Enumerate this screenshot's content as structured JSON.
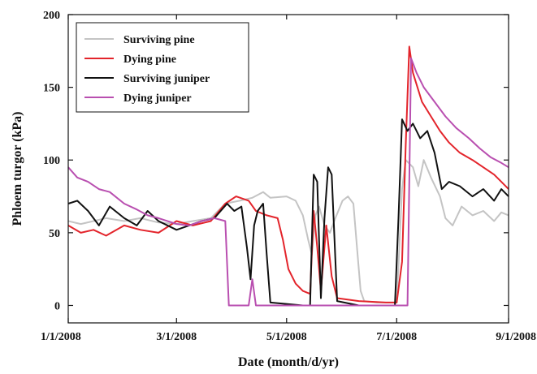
{
  "chart_data": {
    "type": "line",
    "xlabel": "Date (month/d/yr)",
    "ylabel": "Phloem turgor (kPa)",
    "xlim": [
      "2008-01-01",
      "2008-09-01"
    ],
    "ylim": [
      -12,
      200
    ],
    "x_ticks": [
      {
        "date": "2008-01-01",
        "label": "1/1/2008"
      },
      {
        "date": "2008-03-01",
        "label": "3/1/2008"
      },
      {
        "date": "2008-05-01",
        "label": "5/1/2008"
      },
      {
        "date": "2008-07-01",
        "label": "7/1/2008"
      },
      {
        "date": "2008-09-01",
        "label": "9/1/2008"
      }
    ],
    "y_ticks": [
      0,
      50,
      100,
      150,
      200
    ],
    "grid": false,
    "legend_position": "top-left",
    "series": [
      {
        "name": "Surviving pine",
        "color": "#c4c4c4",
        "points": [
          [
            "2008-01-01",
            58
          ],
          [
            "2008-01-08",
            56
          ],
          [
            "2008-01-15",
            58
          ],
          [
            "2008-01-22",
            60
          ],
          [
            "2008-02-01",
            58
          ],
          [
            "2008-02-10",
            60
          ],
          [
            "2008-02-20",
            57
          ],
          [
            "2008-03-01",
            56
          ],
          [
            "2008-03-10",
            58
          ],
          [
            "2008-03-20",
            60
          ],
          [
            "2008-03-28",
            70
          ],
          [
            "2008-04-05",
            72
          ],
          [
            "2008-04-12",
            74
          ],
          [
            "2008-04-18",
            78
          ],
          [
            "2008-04-22",
            74
          ],
          [
            "2008-05-01",
            75
          ],
          [
            "2008-05-06",
            72
          ],
          [
            "2008-05-10",
            62
          ],
          [
            "2008-05-13",
            45
          ],
          [
            "2008-05-15",
            35
          ],
          [
            "2008-05-17",
            62
          ],
          [
            "2008-05-19",
            68
          ],
          [
            "2008-05-22",
            55
          ],
          [
            "2008-05-25",
            50
          ],
          [
            "2008-05-28",
            60
          ],
          [
            "2008-06-01",
            72
          ],
          [
            "2008-06-04",
            75
          ],
          [
            "2008-06-07",
            70
          ],
          [
            "2008-06-09",
            40
          ],
          [
            "2008-06-11",
            10
          ],
          [
            "2008-06-13",
            3
          ],
          [
            "2008-06-20",
            2
          ],
          [
            "2008-07-01",
            2
          ],
          [
            "2008-07-04",
            80
          ],
          [
            "2008-07-06",
            100
          ],
          [
            "2008-07-10",
            95
          ],
          [
            "2008-07-13",
            82
          ],
          [
            "2008-07-16",
            100
          ],
          [
            "2008-07-20",
            88
          ],
          [
            "2008-07-25",
            75
          ],
          [
            "2008-07-28",
            60
          ],
          [
            "2008-08-01",
            55
          ],
          [
            "2008-08-06",
            68
          ],
          [
            "2008-08-12",
            62
          ],
          [
            "2008-08-18",
            65
          ],
          [
            "2008-08-24",
            58
          ],
          [
            "2008-08-28",
            64
          ],
          [
            "2008-09-01",
            62
          ]
        ]
      },
      {
        "name": "Dying pine",
        "color": "#e3242b",
        "points": [
          [
            "2008-01-01",
            55
          ],
          [
            "2008-01-08",
            50
          ],
          [
            "2008-01-15",
            52
          ],
          [
            "2008-01-22",
            48
          ],
          [
            "2008-02-01",
            55
          ],
          [
            "2008-02-10",
            52
          ],
          [
            "2008-02-20",
            50
          ],
          [
            "2008-03-01",
            58
          ],
          [
            "2008-03-10",
            55
          ],
          [
            "2008-03-20",
            58
          ],
          [
            "2008-03-28",
            70
          ],
          [
            "2008-04-03",
            75
          ],
          [
            "2008-04-10",
            72
          ],
          [
            "2008-04-14",
            65
          ],
          [
            "2008-04-20",
            62
          ],
          [
            "2008-04-26",
            60
          ],
          [
            "2008-04-29",
            45
          ],
          [
            "2008-05-02",
            25
          ],
          [
            "2008-05-06",
            15
          ],
          [
            "2008-05-10",
            10
          ],
          [
            "2008-05-14",
            8
          ],
          [
            "2008-05-16",
            65
          ],
          [
            "2008-05-18",
            40
          ],
          [
            "2008-05-20",
            10
          ],
          [
            "2008-05-23",
            55
          ],
          [
            "2008-05-26",
            20
          ],
          [
            "2008-05-29",
            5
          ],
          [
            "2008-06-10",
            3
          ],
          [
            "2008-06-25",
            2
          ],
          [
            "2008-07-01",
            2
          ],
          [
            "2008-07-04",
            30
          ],
          [
            "2008-07-06",
            110
          ],
          [
            "2008-07-08",
            178
          ],
          [
            "2008-07-10",
            160
          ],
          [
            "2008-07-15",
            140
          ],
          [
            "2008-07-20",
            130
          ],
          [
            "2008-07-25",
            120
          ],
          [
            "2008-07-30",
            112
          ],
          [
            "2008-08-05",
            105
          ],
          [
            "2008-08-12",
            100
          ],
          [
            "2008-08-18",
            95
          ],
          [
            "2008-08-24",
            90
          ],
          [
            "2008-08-28",
            85
          ],
          [
            "2008-09-01",
            80
          ]
        ]
      },
      {
        "name": "Surviving juniper",
        "color": "#111111",
        "points": [
          [
            "2008-01-01",
            70
          ],
          [
            "2008-01-06",
            72
          ],
          [
            "2008-01-12",
            65
          ],
          [
            "2008-01-18",
            55
          ],
          [
            "2008-01-24",
            68
          ],
          [
            "2008-02-01",
            60
          ],
          [
            "2008-02-08",
            55
          ],
          [
            "2008-02-14",
            65
          ],
          [
            "2008-02-20",
            58
          ],
          [
            "2008-03-01",
            52
          ],
          [
            "2008-03-08",
            55
          ],
          [
            "2008-03-15",
            58
          ],
          [
            "2008-03-22",
            60
          ],
          [
            "2008-03-29",
            70
          ],
          [
            "2008-04-02",
            65
          ],
          [
            "2008-04-06",
            68
          ],
          [
            "2008-04-09",
            40
          ],
          [
            "2008-04-11",
            18
          ],
          [
            "2008-04-13",
            55
          ],
          [
            "2008-04-15",
            65
          ],
          [
            "2008-04-18",
            70
          ],
          [
            "2008-04-20",
            35
          ],
          [
            "2008-04-22",
            2
          ],
          [
            "2008-05-10",
            0
          ],
          [
            "2008-05-14",
            0
          ],
          [
            "2008-05-16",
            90
          ],
          [
            "2008-05-18",
            85
          ],
          [
            "2008-05-20",
            5
          ],
          [
            "2008-05-22",
            60
          ],
          [
            "2008-05-24",
            95
          ],
          [
            "2008-05-26",
            90
          ],
          [
            "2008-05-29",
            3
          ],
          [
            "2008-06-10",
            0
          ],
          [
            "2008-06-30",
            0
          ],
          [
            "2008-07-02",
            60
          ],
          [
            "2008-07-04",
            128
          ],
          [
            "2008-07-07",
            120
          ],
          [
            "2008-07-10",
            125
          ],
          [
            "2008-07-14",
            115
          ],
          [
            "2008-07-18",
            120
          ],
          [
            "2008-07-22",
            105
          ],
          [
            "2008-07-26",
            80
          ],
          [
            "2008-07-30",
            85
          ],
          [
            "2008-08-05",
            82
          ],
          [
            "2008-08-12",
            75
          ],
          [
            "2008-08-18",
            80
          ],
          [
            "2008-08-24",
            72
          ],
          [
            "2008-08-28",
            80
          ],
          [
            "2008-09-01",
            75
          ]
        ]
      },
      {
        "name": "Dying juniper",
        "color": "#b94fb0",
        "points": [
          [
            "2008-01-01",
            95
          ],
          [
            "2008-01-06",
            88
          ],
          [
            "2008-01-12",
            85
          ],
          [
            "2008-01-18",
            80
          ],
          [
            "2008-01-24",
            78
          ],
          [
            "2008-02-01",
            70
          ],
          [
            "2008-02-08",
            66
          ],
          [
            "2008-02-14",
            62
          ],
          [
            "2008-02-20",
            60
          ],
          [
            "2008-03-01",
            56
          ],
          [
            "2008-03-08",
            55
          ],
          [
            "2008-03-15",
            58
          ],
          [
            "2008-03-22",
            60
          ],
          [
            "2008-03-28",
            58
          ],
          [
            "2008-03-30",
            0
          ],
          [
            "2008-04-10",
            0
          ],
          [
            "2008-04-12",
            18
          ],
          [
            "2008-04-14",
            0
          ],
          [
            "2008-05-20",
            0
          ],
          [
            "2008-06-20",
            0
          ],
          [
            "2008-07-07",
            0
          ],
          [
            "2008-07-09",
            170
          ],
          [
            "2008-07-12",
            160
          ],
          [
            "2008-07-16",
            150
          ],
          [
            "2008-07-22",
            140
          ],
          [
            "2008-07-28",
            130
          ],
          [
            "2008-08-03",
            122
          ],
          [
            "2008-08-10",
            115
          ],
          [
            "2008-08-16",
            108
          ],
          [
            "2008-08-22",
            102
          ],
          [
            "2008-08-28",
            98
          ],
          [
            "2008-09-01",
            95
          ]
        ]
      }
    ]
  }
}
